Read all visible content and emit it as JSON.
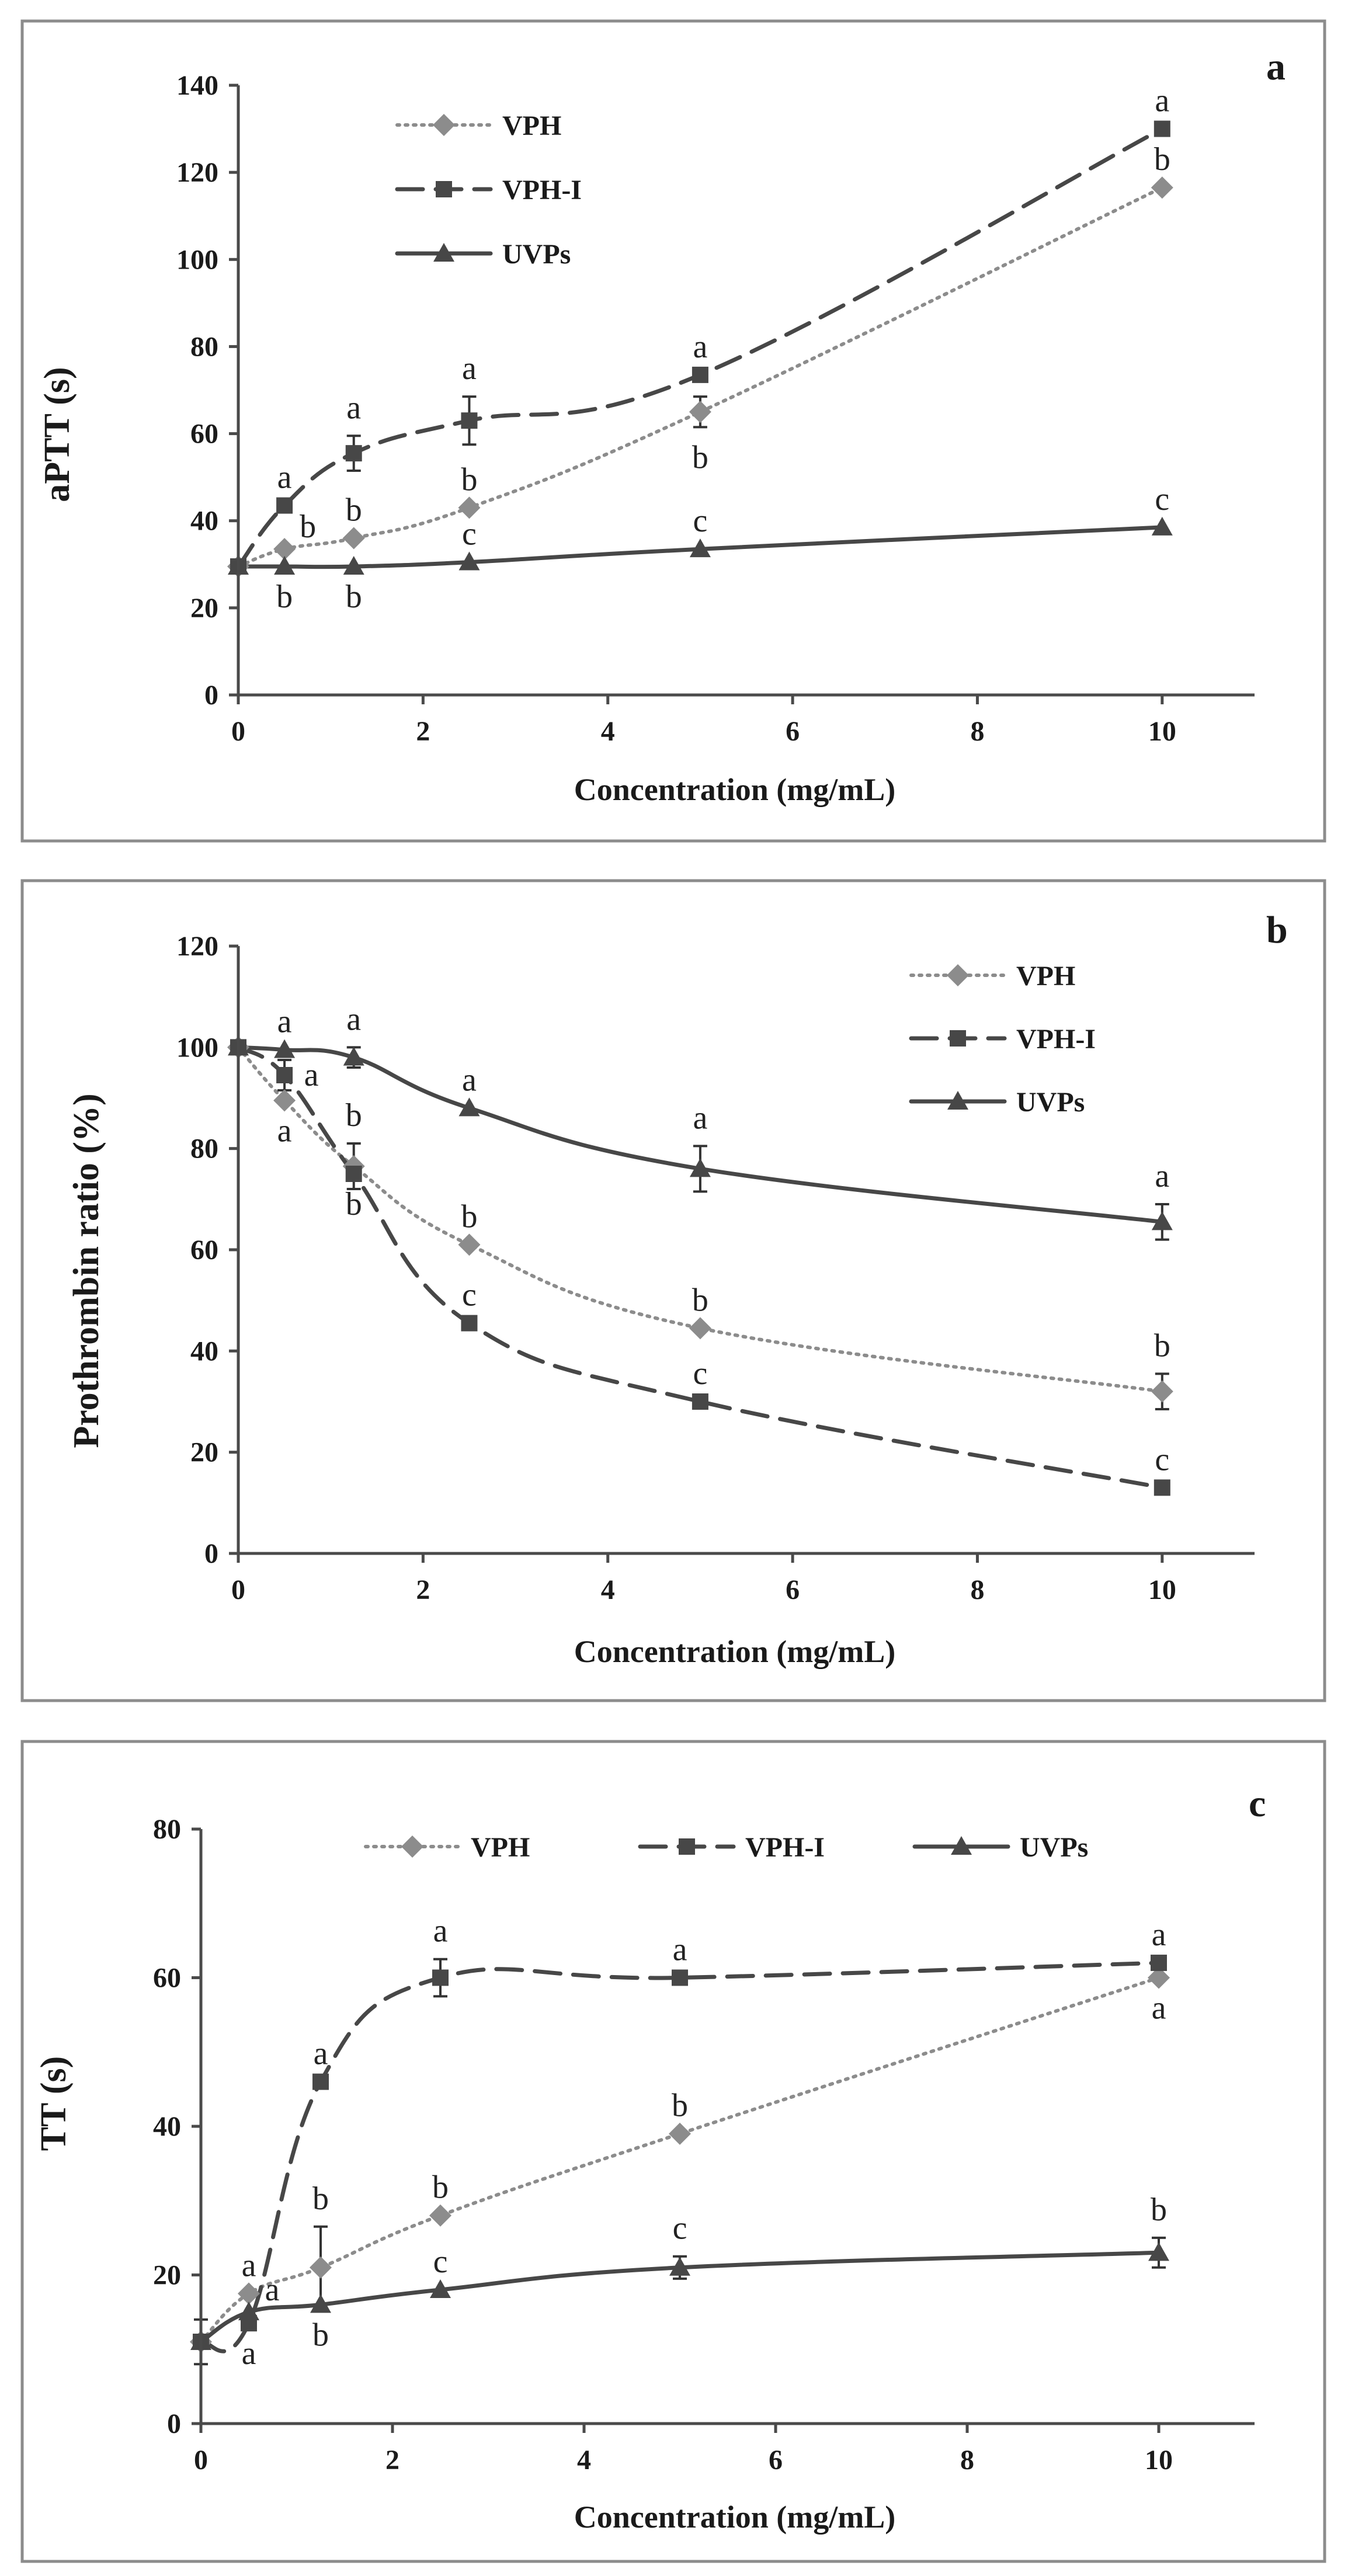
{
  "colors": {
    "vph": "#8c8c8c",
    "vphi": "#474747",
    "uvps": "#474747",
    "axis": "#4a4a4a",
    "frame": "#8c8c8c"
  },
  "chart_data": [
    {
      "type": "line",
      "panel_label": "a",
      "ylabel": "aPTT (s)",
      "xlabel": "Concentration (mg/mL)",
      "xlim": [
        0,
        11
      ],
      "ylim": [
        0,
        140
      ],
      "xticks": [
        0,
        2,
        4,
        6,
        8,
        10
      ],
      "yticks": [
        0,
        20,
        40,
        60,
        80,
        100,
        120,
        140
      ],
      "legend_position": "top-left",
      "legend_layout": "column",
      "x": [
        0,
        0.5,
        1.25,
        2.5,
        5,
        10
      ],
      "series": [
        {
          "name": "VPH",
          "style": "dotted",
          "marker": "diamond",
          "values": [
            29.5,
            33.5,
            36,
            43,
            65,
            116.5
          ],
          "errors": [
            0,
            0,
            0,
            0,
            3.5,
            0
          ],
          "letters": [
            "",
            "b",
            "b",
            "b",
            "b",
            "b"
          ],
          "letter_pos": [
            "",
            "above-right",
            "above",
            "above",
            "below",
            "above"
          ]
        },
        {
          "name": "VPH-I",
          "style": "dashed",
          "marker": "square",
          "values": [
            29.5,
            43.5,
            55.5,
            63,
            73.5,
            130
          ],
          "errors": [
            0,
            0,
            4,
            5.5,
            0,
            0
          ],
          "letters": [
            "",
            "a",
            "a",
            "a",
            "a",
            "a"
          ],
          "letter_pos": [
            "",
            "above",
            "above",
            "above",
            "above",
            "above"
          ]
        },
        {
          "name": "UVPs",
          "style": "solid",
          "marker": "triangle",
          "values": [
            29.5,
            29.5,
            29.5,
            30.5,
            33.5,
            38.5
          ],
          "errors": [
            0,
            0,
            0,
            0,
            0,
            0
          ],
          "letters": [
            "",
            "b",
            "b",
            "c",
            "c",
            "c"
          ],
          "letter_pos": [
            "",
            "below",
            "below",
            "above",
            "above",
            "above"
          ]
        }
      ]
    },
    {
      "type": "line",
      "panel_label": "b",
      "ylabel": "Prothrombin ratio  (%)",
      "xlabel": "Concentration (mg/mL)",
      "xlim": [
        0,
        11
      ],
      "ylim": [
        0,
        120
      ],
      "xticks": [
        0,
        2,
        4,
        6,
        8,
        10
      ],
      "yticks": [
        0,
        20,
        40,
        60,
        80,
        100,
        120
      ],
      "legend_position": "top-right",
      "legend_layout": "column",
      "x": [
        0,
        0.5,
        1.25,
        2.5,
        5,
        10
      ],
      "series": [
        {
          "name": "VPH",
          "style": "dotted",
          "marker": "diamond",
          "values": [
            100,
            89.5,
            76.5,
            61,
            44.5,
            32
          ],
          "errors": [
            0,
            0,
            4.5,
            0,
            0,
            3.5
          ],
          "letters": [
            "",
            "a",
            "b",
            "b",
            "b",
            "b"
          ],
          "letter_pos": [
            "",
            "below",
            "above",
            "above",
            "above",
            "above"
          ]
        },
        {
          "name": "VPH-I",
          "style": "dashed",
          "marker": "square",
          "values": [
            100,
            94.5,
            75,
            45.5,
            30,
            13
          ],
          "errors": [
            0,
            3,
            0,
            0,
            0,
            0
          ],
          "letters": [
            "",
            "a",
            "b",
            "c",
            "c",
            "c"
          ],
          "letter_pos": [
            "",
            "right",
            "below",
            "above",
            "above",
            "above"
          ]
        },
        {
          "name": "UVPs",
          "style": "solid",
          "marker": "triangle",
          "values": [
            100,
            99.5,
            98,
            88,
            76,
            65.5
          ],
          "errors": [
            0,
            0,
            2,
            0,
            4.5,
            3.5
          ],
          "letters": [
            "",
            "a",
            "a",
            "a",
            "a",
            "a"
          ],
          "letter_pos": [
            "",
            "above",
            "above",
            "above",
            "above",
            "above"
          ]
        }
      ]
    },
    {
      "type": "line",
      "panel_label": "c",
      "ylabel": "TT  (s)",
      "xlabel": "Concentration (mg/mL)",
      "xlim": [
        0,
        11
      ],
      "ylim": [
        0,
        80
      ],
      "xticks": [
        0,
        2,
        4,
        6,
        8,
        10
      ],
      "yticks": [
        0,
        20,
        40,
        60,
        80
      ],
      "legend_position": "top",
      "legend_layout": "row",
      "x": [
        0,
        0.5,
        1.25,
        2.5,
        5,
        10
      ],
      "series": [
        {
          "name": "VPH",
          "style": "dotted",
          "marker": "diamond",
          "values": [
            11,
            17.5,
            21,
            28,
            39,
            60
          ],
          "errors": [
            3,
            0,
            5.5,
            0,
            0,
            0
          ],
          "letters": [
            "",
            "a",
            "b",
            "b",
            "b",
            "a"
          ],
          "letter_pos": [
            "",
            "above",
            "above",
            "above",
            "above",
            "below"
          ]
        },
        {
          "name": "VPH-I",
          "style": "dashed",
          "marker": "square",
          "values": [
            11,
            13.5,
            46,
            60,
            60,
            62
          ],
          "errors": [
            0,
            0,
            0,
            2.5,
            0,
            0
          ],
          "letters": [
            "",
            "a",
            "a",
            "a",
            "a",
            "a"
          ],
          "letter_pos": [
            "",
            "below",
            "above",
            "above",
            "above",
            "above"
          ]
        },
        {
          "name": "UVPs",
          "style": "solid",
          "marker": "triangle",
          "values": [
            11,
            15,
            16,
            18,
            21,
            23
          ],
          "errors": [
            0,
            0,
            0,
            0,
            1.5,
            2
          ],
          "letters": [
            "",
            "a",
            "b",
            "c",
            "c",
            "b"
          ],
          "letter_pos": [
            "",
            "above-right",
            "below",
            "above",
            "above",
            "above"
          ]
        }
      ]
    }
  ]
}
